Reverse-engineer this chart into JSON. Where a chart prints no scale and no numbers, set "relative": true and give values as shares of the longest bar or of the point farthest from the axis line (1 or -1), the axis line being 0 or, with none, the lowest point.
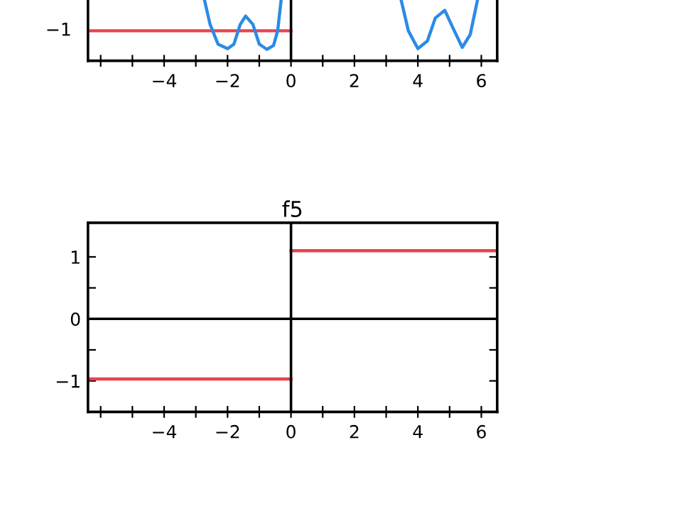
{
  "chart_data": [
    {
      "type": "line",
      "relative": true,
      "xlim": [
        -6.4,
        6.5
      ],
      "xticks": [
        {
          "value": -6,
          "label": null
        },
        {
          "value": -5,
          "label": null
        },
        -4,
        {
          "value": -3,
          "label": null
        },
        -2,
        {
          "value": -1,
          "label": null
        },
        0,
        {
          "value": 1,
          "label": null
        },
        2,
        {
          "value": 3,
          "label": null
        },
        4,
        {
          "value": 5,
          "label": null
        },
        6
      ],
      "annotations": [
        "−1"
      ],
      "ref_lines": [
        {
          "axis": "x",
          "value": 0,
          "color": "#000000"
        }
      ],
      "series": [
        {
          "color": "#e8414f",
          "x": [
            -6.4,
            0
          ],
          "values": [
            0.47,
            0.47
          ]
        },
        {
          "color": "#2b8be6",
          "x": [
            -2.75,
            -2.55,
            -2.3,
            -2.0,
            -1.8,
            -1.6,
            -1.43,
            -1.2,
            -1.0,
            -0.76,
            -0.55,
            -0.42,
            -0.3
          ],
          "values": [
            1,
            0.57,
            0.26,
            0.19,
            0.26,
            0.57,
            0.7,
            0.57,
            0.26,
            0.18,
            0.24,
            0.47,
            1
          ]
        },
        {
          "color": "#2b8be6",
          "x": [
            3.45,
            3.7,
            4.0,
            4.3,
            4.55,
            4.85,
            5.1,
            5.4,
            5.65,
            5.9
          ],
          "values": [
            1,
            0.47,
            0.19,
            0.31,
            0.67,
            0.79,
            0.52,
            0.21,
            0.41,
            1
          ]
        }
      ]
    },
    {
      "type": "line",
      "title": "f5",
      "xlim": [
        -6.4,
        6.5
      ],
      "ylim": [
        -1.5,
        1.55
      ],
      "xticks": [
        {
          "value": -6,
          "label": null
        },
        {
          "value": -5,
          "label": null
        },
        -4,
        {
          "value": -3,
          "label": null
        },
        -2,
        {
          "value": -1,
          "label": null
        },
        0,
        {
          "value": 1,
          "label": null
        },
        2,
        {
          "value": 3,
          "label": null
        },
        4,
        {
          "value": 5,
          "label": null
        },
        6
      ],
      "yticks": [
        -1,
        {
          "value": -0.5,
          "label": null
        },
        0,
        {
          "value": 0.5,
          "label": null
        },
        1
      ],
      "ref_lines": [
        {
          "axis": "x",
          "value": 0,
          "color": "#000000"
        },
        {
          "axis": "y",
          "value": 0,
          "color": "#000000"
        }
      ],
      "series": [
        {
          "color": "#e8414f",
          "x": [
            -6.4,
            0
          ],
          "values": [
            -0.97,
            -0.97
          ]
        },
        {
          "color": "#e8414f",
          "x": [
            0,
            6.5
          ],
          "values": [
            1.1,
            1.1
          ]
        }
      ]
    }
  ]
}
